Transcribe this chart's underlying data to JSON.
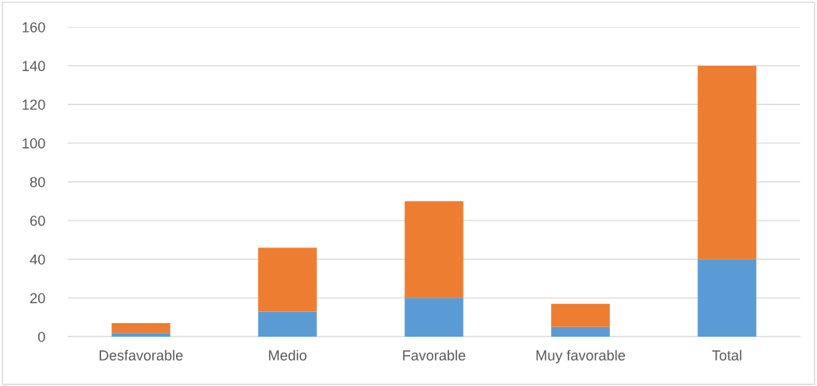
{
  "chart_data": {
    "type": "bar",
    "stacked": true,
    "categories": [
      "Desfavorable",
      "Medio",
      "Favorable",
      "Muy favorable",
      "Total"
    ],
    "series": [
      {
        "color": "#5b9bd5",
        "values": [
          2,
          13,
          20,
          5,
          40
        ]
      },
      {
        "color": "#ed7d31",
        "values": [
          5,
          33,
          50,
          12,
          100
        ]
      }
    ],
    "ylim": [
      0,
      160
    ],
    "yticks": [
      0,
      20,
      40,
      60,
      80,
      100,
      120,
      140,
      160
    ],
    "grid": "y"
  }
}
